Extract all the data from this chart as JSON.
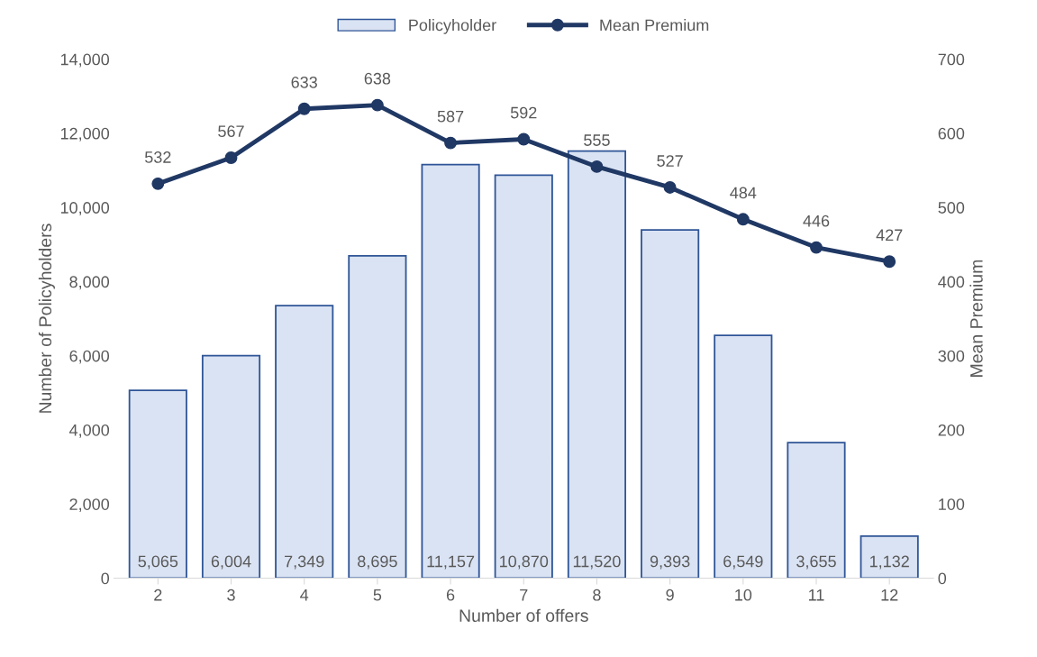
{
  "chart_data": {
    "type": "bar",
    "xlabel": "Number of offers",
    "ylabel": "Number of Policyholders",
    "y2label": "Mean Premium",
    "categories": [
      "2",
      "3",
      "4",
      "5",
      "6",
      "7",
      "8",
      "9",
      "10",
      "11",
      "12"
    ],
    "series": [
      {
        "name": "Policyholder",
        "color": "#dae3f3",
        "values": [
          5065,
          6004,
          7349,
          8695,
          11157,
          10870,
          11520,
          9393,
          6549,
          3655,
          1132
        ],
        "value_labels": [
          "5,065",
          "6,004",
          "7,349",
          "8,695",
          "11,157",
          "10,870",
          "11,520",
          "9,393",
          "6,549",
          "3,655",
          "1,132"
        ]
      },
      {
        "name": "Mean Premium",
        "type": "line",
        "axis": "y2",
        "color": "#203864",
        "marker": "circle",
        "values": [
          532,
          567,
          633,
          638,
          587,
          592,
          555,
          527,
          484,
          446,
          427
        ]
      }
    ],
    "ylim": [
      0,
      14000
    ],
    "yticks": [
      0,
      {
        "value": 2000,
        "label": "2,000"
      },
      {
        "value": 4000,
        "label": "4,000"
      },
      {
        "value": 6000,
        "label": "6,000"
      },
      {
        "value": 8000,
        "label": "8,000"
      },
      {
        "value": 10000,
        "label": "10,000"
      },
      {
        "value": 12000,
        "label": "12,000"
      },
      {
        "value": 14000,
        "label": "14,000"
      }
    ],
    "y2lim": [
      0,
      700
    ],
    "y2ticks": [
      0,
      100,
      200,
      300,
      400,
      500,
      600,
      700
    ],
    "data_labels": true,
    "grid": false,
    "legend": "top"
  }
}
